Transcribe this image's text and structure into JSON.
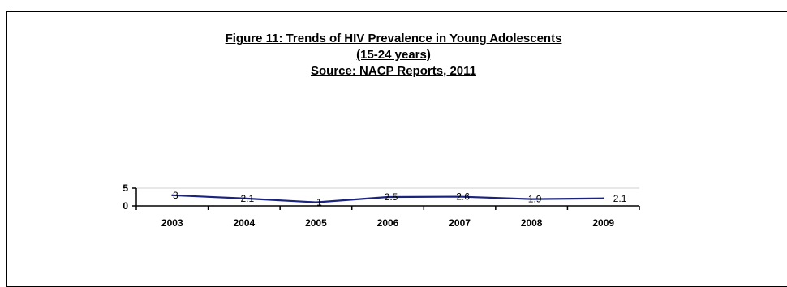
{
  "chart_data": {
    "type": "line",
    "title": "Figure 11: Trends of HIV Prevalence in Young Adolescents",
    "title_line2": "(15-24 years)",
    "subtitle": "Source: NACP Reports, 2011",
    "categories": [
      "2003",
      "2004",
      "2005",
      "2006",
      "2007",
      "2008",
      "2009"
    ],
    "series": [
      {
        "values": [
          3,
          2.1,
          1,
          2.5,
          2.6,
          1.9,
          2.1
        ],
        "color": "#1a237e"
      }
    ],
    "ylim": [
      0,
      5
    ],
    "yticks": [
      0,
      5
    ],
    "grid": false,
    "legend": "none"
  }
}
